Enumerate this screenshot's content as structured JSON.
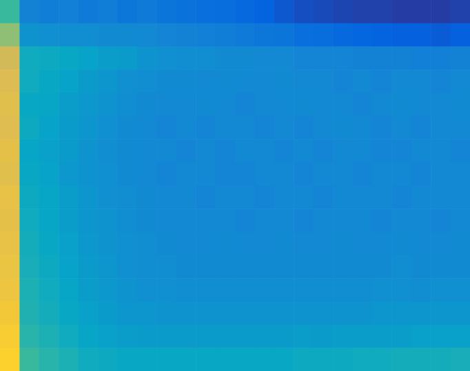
{
  "chart_data": {
    "type": "heatmap",
    "xlim": [
      0,
      24
    ],
    "ylim": [
      0,
      16
    ],
    "tick_labels": false,
    "clim": [
      0,
      1
    ],
    "cells": [
      [
        0.5,
        0.24,
        0.22,
        0.23,
        0.21,
        0.22,
        0.2,
        0.21,
        0.19,
        0.18,
        0.17,
        0.16,
        0.15,
        0.13,
        0.1,
        0.08,
        0.07,
        0.06,
        0.05,
        0.05,
        0.04,
        0.04,
        0.04,
        0.05
      ],
      [
        0.62,
        0.3,
        0.29,
        0.28,
        0.28,
        0.27,
        0.27,
        0.26,
        0.25,
        0.24,
        0.23,
        0.22,
        0.21,
        0.2,
        0.19,
        0.17,
        0.16,
        0.15,
        0.14,
        0.13,
        0.12,
        0.12,
        0.11,
        0.12
      ],
      [
        0.74,
        0.4,
        0.39,
        0.38,
        0.36,
        0.34,
        0.33,
        0.3,
        0.29,
        0.28,
        0.28,
        0.27,
        0.27,
        0.26,
        0.26,
        0.25,
        0.25,
        0.25,
        0.24,
        0.24,
        0.24,
        0.23,
        0.23,
        0.24
      ],
      [
        0.76,
        0.4,
        0.38,
        0.36,
        0.33,
        0.31,
        0.29,
        0.28,
        0.27,
        0.27,
        0.26,
        0.27,
        0.26,
        0.26,
        0.27,
        0.26,
        0.26,
        0.25,
        0.26,
        0.25,
        0.26,
        0.26,
        0.25,
        0.26
      ],
      [
        0.78,
        0.38,
        0.37,
        0.34,
        0.32,
        0.3,
        0.28,
        0.27,
        0.26,
        0.26,
        0.27,
        0.26,
        0.25,
        0.26,
        0.26,
        0.27,
        0.26,
        0.26,
        0.25,
        0.26,
        0.27,
        0.26,
        0.26,
        0.27
      ],
      [
        0.77,
        0.39,
        0.36,
        0.33,
        0.31,
        0.29,
        0.27,
        0.26,
        0.25,
        0.26,
        0.25,
        0.26,
        0.26,
        0.25,
        0.26,
        0.25,
        0.26,
        0.27,
        0.26,
        0.25,
        0.26,
        0.25,
        0.26,
        0.26
      ],
      [
        0.79,
        0.37,
        0.35,
        0.33,
        0.3,
        0.28,
        0.27,
        0.26,
        0.26,
        0.25,
        0.26,
        0.25,
        0.26,
        0.26,
        0.25,
        0.26,
        0.25,
        0.26,
        0.26,
        0.25,
        0.25,
        0.26,
        0.26,
        0.25
      ],
      [
        0.78,
        0.38,
        0.36,
        0.32,
        0.3,
        0.29,
        0.27,
        0.26,
        0.25,
        0.26,
        0.26,
        0.25,
        0.25,
        0.26,
        0.26,
        0.25,
        0.26,
        0.26,
        0.25,
        0.26,
        0.26,
        0.25,
        0.26,
        0.26
      ],
      [
        0.8,
        0.39,
        0.37,
        0.34,
        0.31,
        0.29,
        0.28,
        0.27,
        0.26,
        0.26,
        0.25,
        0.26,
        0.26,
        0.25,
        0.26,
        0.26,
        0.25,
        0.26,
        0.26,
        0.26,
        0.25,
        0.26,
        0.26,
        0.26
      ],
      [
        0.79,
        0.4,
        0.37,
        0.34,
        0.31,
        0.3,
        0.28,
        0.27,
        0.26,
        0.26,
        0.26,
        0.26,
        0.25,
        0.26,
        0.26,
        0.25,
        0.26,
        0.26,
        0.26,
        0.25,
        0.26,
        0.26,
        0.25,
        0.26
      ],
      [
        0.8,
        0.41,
        0.38,
        0.35,
        0.32,
        0.3,
        0.29,
        0.28,
        0.27,
        0.26,
        0.26,
        0.27,
        0.26,
        0.26,
        0.27,
        0.26,
        0.26,
        0.27,
        0.26,
        0.26,
        0.27,
        0.26,
        0.26,
        0.27
      ],
      [
        0.81,
        0.42,
        0.39,
        0.36,
        0.33,
        0.31,
        0.29,
        0.28,
        0.28,
        0.27,
        0.27,
        0.27,
        0.27,
        0.27,
        0.27,
        0.27,
        0.27,
        0.27,
        0.27,
        0.27,
        0.28,
        0.27,
        0.27,
        0.27
      ],
      [
        0.82,
        0.43,
        0.4,
        0.37,
        0.34,
        0.32,
        0.3,
        0.29,
        0.29,
        0.28,
        0.28,
        0.28,
        0.28,
        0.28,
        0.28,
        0.28,
        0.28,
        0.28,
        0.28,
        0.29,
        0.29,
        0.28,
        0.29,
        0.29
      ],
      [
        0.84,
        0.44,
        0.41,
        0.38,
        0.35,
        0.33,
        0.31,
        0.31,
        0.3,
        0.3,
        0.3,
        0.3,
        0.3,
        0.3,
        0.3,
        0.3,
        0.3,
        0.3,
        0.3,
        0.31,
        0.31,
        0.31,
        0.31,
        0.31
      ],
      [
        0.86,
        0.46,
        0.43,
        0.4,
        0.37,
        0.35,
        0.34,
        0.33,
        0.33,
        0.33,
        0.33,
        0.33,
        0.33,
        0.33,
        0.33,
        0.34,
        0.33,
        0.34,
        0.34,
        0.34,
        0.34,
        0.35,
        0.35,
        0.35
      ],
      [
        0.88,
        0.5,
        0.46,
        0.43,
        0.4,
        0.39,
        0.38,
        0.38,
        0.38,
        0.38,
        0.38,
        0.38,
        0.38,
        0.38,
        0.38,
        0.39,
        0.39,
        0.39,
        0.4,
        0.4,
        0.41,
        0.41,
        0.41,
        0.42
      ]
    ]
  }
}
